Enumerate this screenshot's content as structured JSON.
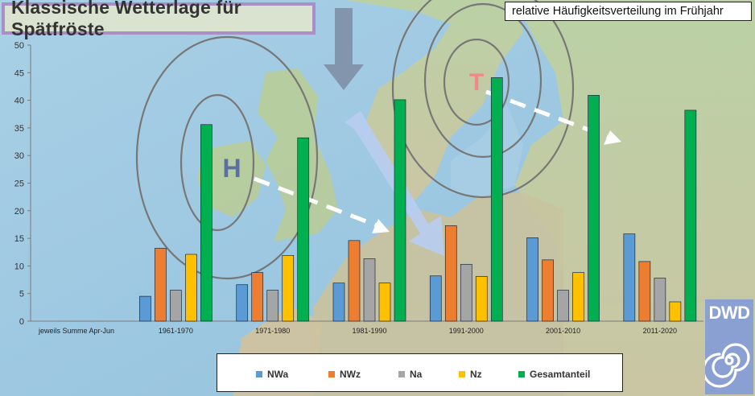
{
  "title": "Klassische Wetterlage für Spätfröste",
  "subtitle": "relative Häufigkeitsverteilung im Frühjahr",
  "logo": "DWD",
  "map_labels": {
    "high": "H",
    "low": "T"
  },
  "chart_data": {
    "type": "bar",
    "categories": [
      "jeweils Summe Apr-Jun",
      "1961-1970",
      "1971-1980",
      "1981-1990",
      "1991-2000",
      "2001-2010",
      "2011-2020"
    ],
    "series": [
      {
        "name": "NWa",
        "color": "#5b9bd5",
        "values": [
          null,
          4.5,
          6.6,
          6.9,
          8.2,
          15.1,
          15.8
        ]
      },
      {
        "name": "NWz",
        "color": "#ed7d31",
        "values": [
          null,
          13.2,
          8.8,
          14.6,
          17.3,
          11.1,
          10.8
        ]
      },
      {
        "name": "Na",
        "color": "#a5a5a5",
        "values": [
          null,
          5.6,
          5.6,
          11.3,
          10.3,
          5.6,
          7.8
        ]
      },
      {
        "name": "Nz",
        "color": "#ffc000",
        "values": [
          null,
          12.1,
          11.9,
          6.9,
          8.1,
          8.8,
          3.5
        ]
      },
      {
        "name": "Gesamtanteil",
        "color": "#00b050",
        "values": [
          null,
          35.6,
          33.2,
          40.1,
          44.1,
          40.9,
          38.2
        ]
      }
    ],
    "yticks": [
      "0",
      "5",
      "10",
      "15",
      "20",
      "25",
      "30",
      "35",
      "40",
      "45",
      "50"
    ],
    "ylim": [
      0,
      50
    ],
    "grid": false,
    "legend": "bottom"
  }
}
